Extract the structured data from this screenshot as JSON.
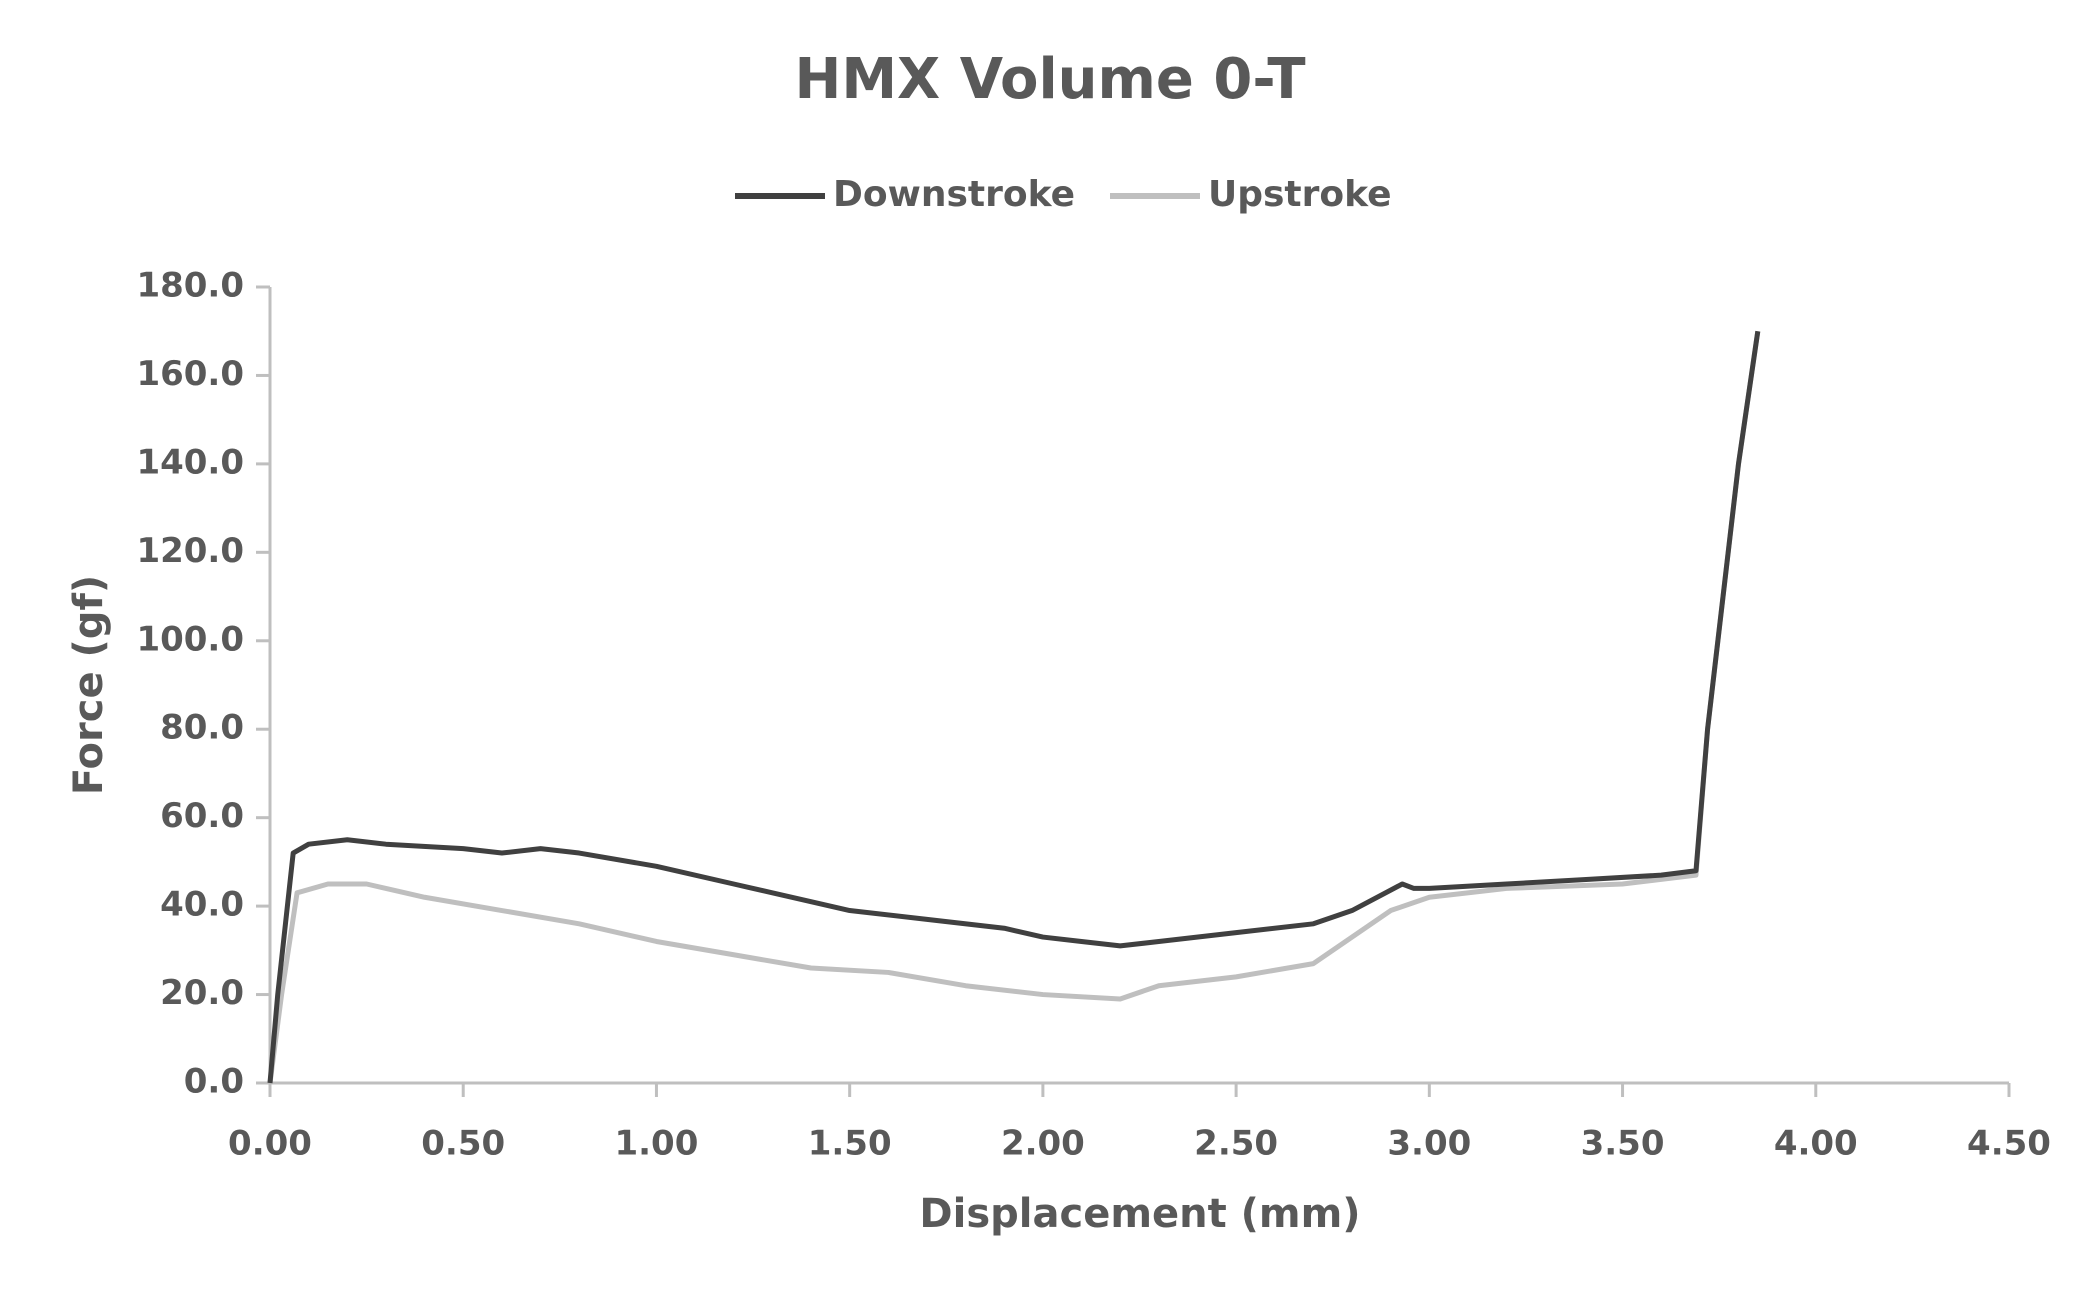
{
  "chart_data": {
    "type": "line",
    "title": "HMX Volume 0-T",
    "x_label": "Displacement (mm)",
    "y_label": "Force (gf)",
    "xlim": [
      0,
      4.5
    ],
    "ylim": [
      0,
      180
    ],
    "xticks": [
      {
        "value": 0,
        "label": "0.00"
      },
      {
        "value": 0.5,
        "label": "0.50"
      },
      {
        "value": 1,
        "label": "1.00"
      },
      {
        "value": 1.5,
        "label": "1.50"
      },
      {
        "value": 2,
        "label": "2.00"
      },
      {
        "value": 2.5,
        "label": "2.50"
      },
      {
        "value": 3,
        "label": "3.00"
      },
      {
        "value": 3.5,
        "label": "3.50"
      },
      {
        "value": 4,
        "label": "4.00"
      },
      {
        "value": 4.5,
        "label": "4.50"
      }
    ],
    "yticks": [
      {
        "value": 0,
        "label": "0.0"
      },
      {
        "value": 20,
        "label": "20.0"
      },
      {
        "value": 40,
        "label": "40.0"
      },
      {
        "value": 60,
        "label": "60.0"
      },
      {
        "value": 80,
        "label": "80.0"
      },
      {
        "value": 100,
        "label": "100.0"
      },
      {
        "value": 120,
        "label": "120.0"
      },
      {
        "value": 140,
        "label": "140.0"
      },
      {
        "value": 160,
        "label": "160.0"
      },
      {
        "value": 180,
        "label": "180.0"
      }
    ],
    "legend": "top",
    "series": [
      {
        "name": "Downstroke",
        "color": "#404040",
        "x": [
          0,
          0.02,
          0.06,
          0.1,
          0.2,
          0.3,
          0.5,
          0.6,
          0.7,
          0.8,
          1.0,
          1.2,
          1.4,
          1.5,
          1.7,
          1.9,
          2.0,
          2.1,
          2.2,
          2.3,
          2.5,
          2.7,
          2.8,
          2.93,
          2.96,
          3.0,
          3.2,
          3.4,
          3.6,
          3.69,
          3.72,
          3.8,
          3.85
        ],
        "values": [
          0,
          20,
          52,
          54,
          55,
          54,
          53,
          52,
          53,
          52,
          49,
          45,
          41,
          39,
          37,
          35,
          33,
          32,
          31,
          32,
          34,
          36,
          39,
          45,
          44,
          44,
          45,
          46,
          47,
          48,
          80,
          140,
          170
        ]
      },
      {
        "name": "Upstroke",
        "color": "#bfbfbf",
        "x": [
          0,
          0.03,
          0.07,
          0.15,
          0.25,
          0.4,
          0.6,
          0.8,
          1.0,
          1.2,
          1.4,
          1.6,
          1.8,
          2.0,
          2.2,
          2.3,
          2.5,
          2.7,
          2.8,
          2.9,
          3.0,
          3.2,
          3.5,
          3.69,
          3.72,
          3.8,
          3.85
        ],
        "values": [
          0,
          20,
          43,
          45,
          45,
          42,
          39,
          36,
          32,
          29,
          26,
          25,
          22,
          20,
          19,
          22,
          24,
          27,
          33,
          39,
          42,
          44,
          45,
          47,
          80,
          140,
          170
        ]
      }
    ]
  }
}
